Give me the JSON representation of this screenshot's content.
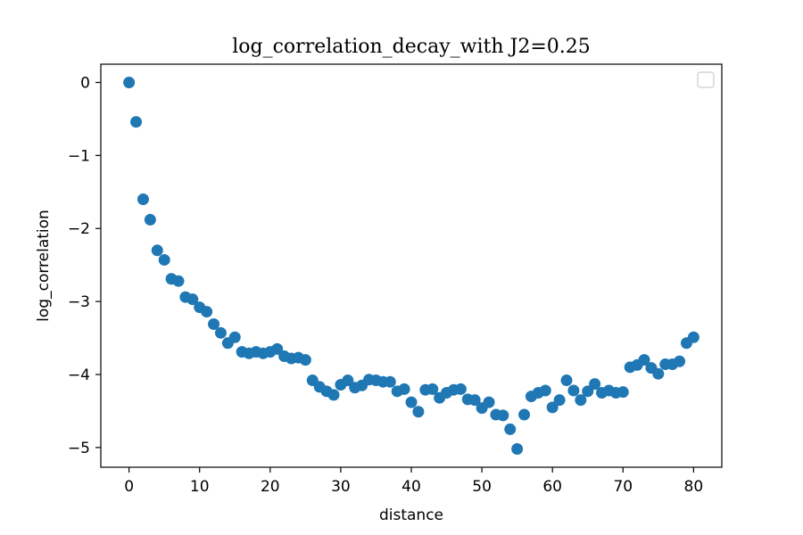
{
  "chart_data": {
    "type": "scatter",
    "title": "log_correlation_decay_with J2=0.25",
    "xlabel": "distance",
    "ylabel": "log_correlation",
    "xlim": [
      -4,
      84
    ],
    "ylim": [
      -5.27,
      0.25
    ],
    "xticks": [
      0,
      10,
      20,
      30,
      40,
      50,
      60,
      70,
      80
    ],
    "yticks": [
      0,
      -1,
      -2,
      -3,
      -4,
      -5
    ],
    "ytick_labels": [
      "0",
      "−1",
      "−2",
      "−3",
      "−4",
      "−5"
    ],
    "grid": false,
    "legend": {
      "placement": "top-right",
      "entries": []
    },
    "marker_color": "#1f77b4",
    "series": [
      {
        "x": [
          0,
          1,
          2,
          3,
          4,
          5,
          6,
          7,
          8,
          9,
          10,
          11,
          12,
          13,
          14,
          15,
          16,
          17,
          18,
          19,
          20,
          21,
          22,
          23,
          24,
          25,
          26,
          27,
          28,
          29,
          30,
          31,
          32,
          33,
          34,
          35,
          36,
          37,
          38,
          39,
          40,
          41,
          42,
          43,
          44,
          45,
          46,
          47,
          48,
          49,
          50,
          51,
          52,
          53,
          54,
          55,
          56,
          57,
          58,
          59,
          60,
          61,
          62,
          63,
          64,
          65,
          66,
          67,
          68,
          69,
          70,
          71,
          72,
          73,
          74,
          75,
          76,
          77,
          78,
          79,
          80
        ],
        "y": [
          0.0,
          -0.54,
          -1.6,
          -1.88,
          -2.3,
          -2.43,
          -2.69,
          -2.72,
          -2.94,
          -2.97,
          -3.08,
          -3.14,
          -3.31,
          -3.43,
          -3.57,
          -3.49,
          -3.69,
          -3.71,
          -3.69,
          -3.71,
          -3.69,
          -3.65,
          -3.75,
          -3.78,
          -3.77,
          -3.8,
          -4.08,
          -4.17,
          -4.23,
          -4.28,
          -4.14,
          -4.08,
          -4.18,
          -4.15,
          -4.07,
          -4.08,
          -4.1,
          -4.1,
          -4.23,
          -4.2,
          -4.38,
          -4.51,
          -4.21,
          -4.2,
          -4.32,
          -4.25,
          -4.21,
          -4.2,
          -4.34,
          -4.35,
          -4.46,
          -4.38,
          -4.55,
          -4.56,
          -4.75,
          -5.02,
          -4.55,
          -4.3,
          -4.25,
          -4.22,
          -4.45,
          -4.35,
          -4.08,
          -4.22,
          -4.35,
          -4.23,
          -4.13,
          -4.25,
          -4.22,
          -4.25,
          -4.24,
          -3.9,
          -3.87,
          -3.8,
          -3.91,
          -3.99,
          -3.86,
          -3.86,
          -3.82,
          -3.57,
          -3.49
        ]
      }
    ]
  }
}
